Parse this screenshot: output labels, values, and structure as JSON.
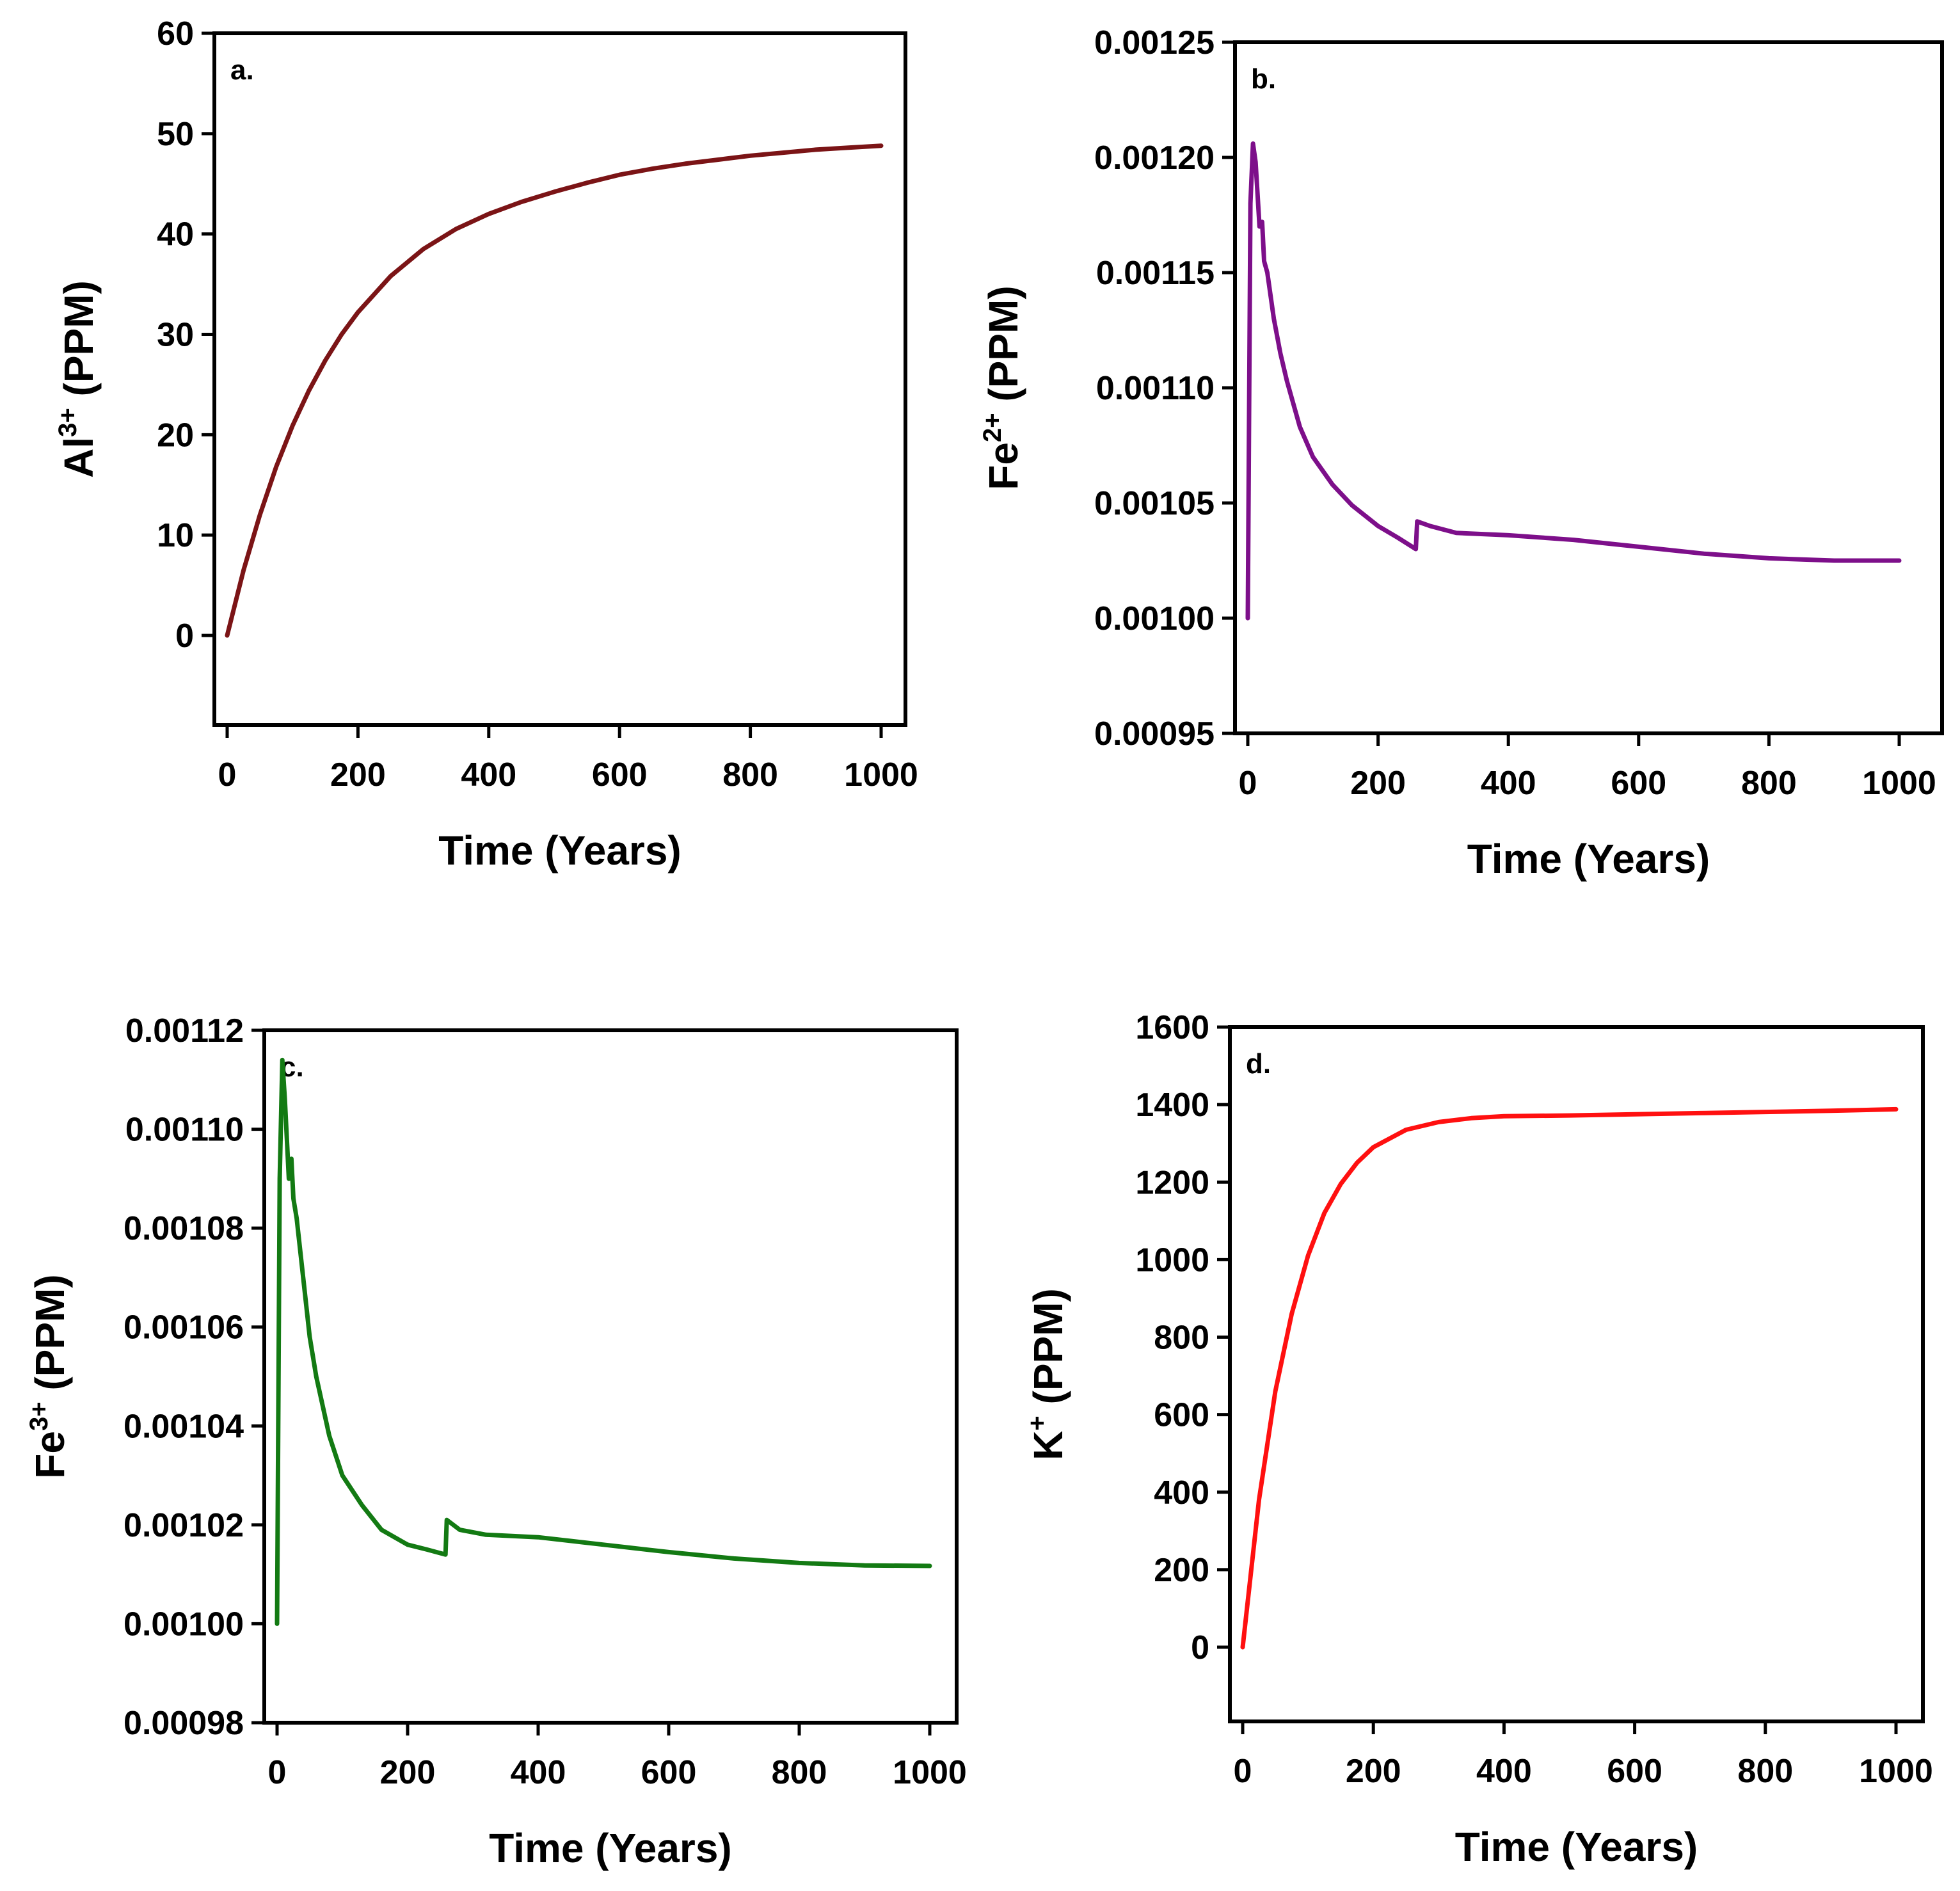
{
  "chart_data": [
    {
      "id": "a",
      "type": "line",
      "panel_label": "a.",
      "xlabel": "Time (Years)",
      "ylabel_main": "Al",
      "ylabel_sup": "3+",
      "ylabel_unit": " (PPM)",
      "xlim": [
        -20,
        1040
      ],
      "ylim": [
        -9,
        60
      ],
      "xticks": [
        0,
        200,
        400,
        600,
        800,
        1000
      ],
      "xtick_labels": [
        "0",
        "200",
        "400",
        "600",
        "800",
        "1000"
      ],
      "yticks": [
        0,
        10,
        20,
        30,
        40,
        50,
        60
      ],
      "ytick_labels": [
        "0",
        "10",
        "20",
        "30",
        "40",
        "50",
        "60"
      ],
      "color": "#7b1416",
      "series": [
        {
          "name": "Al3+",
          "x": [
            0,
            25,
            50,
            75,
            100,
            125,
            150,
            175,
            200,
            250,
            300,
            350,
            400,
            450,
            500,
            550,
            600,
            650,
            700,
            750,
            800,
            850,
            900,
            950,
            1000
          ],
          "y": [
            0,
            6.5,
            12.0,
            16.8,
            20.9,
            24.4,
            27.4,
            30.0,
            32.2,
            35.8,
            38.5,
            40.5,
            42.0,
            43.2,
            44.2,
            45.1,
            45.9,
            46.5,
            47.0,
            47.4,
            47.8,
            48.1,
            48.4,
            48.6,
            48.8
          ]
        }
      ]
    },
    {
      "id": "b",
      "type": "line",
      "panel_label": "b.",
      "xlabel": "Time (Years)",
      "ylabel_main": "Fe",
      "ylabel_sup": "2+",
      "ylabel_unit": " (PPM)",
      "xlim": [
        -20,
        1040
      ],
      "ylim": [
        0.00095,
        0.00125
      ],
      "xticks": [
        0,
        200,
        400,
        600,
        800,
        1000
      ],
      "xtick_labels": [
        "0",
        "200",
        "400",
        "600",
        "800",
        "1000"
      ],
      "yticks": [
        0.00095,
        0.001,
        0.00105,
        0.0011,
        0.00115,
        0.0012,
        0.00125
      ],
      "ytick_labels": [
        "0.00095",
        "0.00100",
        "0.00105",
        "0.00110",
        "0.00115",
        "0.00120",
        "0.00125"
      ],
      "color": "#7d0f8a",
      "series": [
        {
          "name": "Fe2+",
          "x": [
            0,
            4,
            8,
            12,
            18,
            22,
            25,
            30,
            40,
            50,
            60,
            80,
            100,
            130,
            160,
            200,
            230,
            258,
            260,
            280,
            320,
            400,
            500,
            600,
            700,
            800,
            900,
            1000
          ],
          "y": [
            0.001,
            0.00118,
            0.001206,
            0.001198,
            0.00117,
            0.001172,
            0.001155,
            0.00115,
            0.00113,
            0.001115,
            0.001103,
            0.001083,
            0.00107,
            0.001058,
            0.001049,
            0.00104,
            0.001035,
            0.00103,
            0.001042,
            0.00104,
            0.001037,
            0.001036,
            0.001034,
            0.001031,
            0.001028,
            0.001026,
            0.001025,
            0.001025
          ]
        }
      ]
    },
    {
      "id": "c",
      "type": "line",
      "panel_label": "c.",
      "xlabel": "Time (Years)",
      "ylabel_main": "Fe",
      "ylabel_sup": "3+",
      "ylabel_unit": " (PPM)",
      "xlim": [
        -20,
        1040
      ],
      "ylim": [
        0.00098,
        0.00112
      ],
      "xticks": [
        0,
        200,
        400,
        600,
        800,
        1000
      ],
      "xtick_labels": [
        "0",
        "200",
        "400",
        "600",
        "800",
        "1000"
      ],
      "yticks": [
        0.00098,
        0.001,
        0.00102,
        0.00104,
        0.00106,
        0.00108,
        0.0011,
        0.00112
      ],
      "ytick_labels": [
        "0.00098",
        "0.00100",
        "0.00102",
        "0.00104",
        "0.00106",
        "0.00108",
        "0.00110",
        "0.00112"
      ],
      "color": "#137a13",
      "series": [
        {
          "name": "Fe3+",
          "x": [
            0,
            4,
            8,
            12,
            18,
            22,
            25,
            30,
            40,
            50,
            60,
            80,
            100,
            130,
            160,
            200,
            230,
            258,
            260,
            280,
            320,
            400,
            500,
            600,
            700,
            800,
            900,
            1000
          ],
          "y": [
            0.001,
            0.00109,
            0.001114,
            0.001106,
            0.00109,
            0.001094,
            0.001086,
            0.001082,
            0.00107,
            0.001058,
            0.00105,
            0.001038,
            0.00103,
            0.001024,
            0.001019,
            0.001016,
            0.001015,
            0.001014,
            0.001021,
            0.001019,
            0.001018,
            0.0010175,
            0.001016,
            0.0010145,
            0.0010132,
            0.0010123,
            0.0010118,
            0.0010117
          ]
        }
      ]
    },
    {
      "id": "d",
      "type": "line",
      "panel_label": "d.",
      "xlabel": "Time (Years)",
      "ylabel_main": "K",
      "ylabel_sup": "+",
      "ylabel_unit": " (PPM)",
      "xlim": [
        -20,
        1040
      ],
      "ylim": [
        -180,
        1600
      ],
      "xticks": [
        0,
        200,
        400,
        600,
        800,
        1000
      ],
      "xtick_labels": [
        "0",
        "200",
        "400",
        "600",
        "800",
        "1000"
      ],
      "yticks": [
        0,
        200,
        400,
        600,
        800,
        1000,
        1200,
        1400,
        1600
      ],
      "ytick_labels": [
        "0",
        "200",
        "400",
        "600",
        "800",
        "1000",
        "1200",
        "1400",
        "1600"
      ],
      "color": "#ff1010",
      "series": [
        {
          "name": "K+",
          "x": [
            0,
            25,
            50,
            75,
            100,
            125,
            150,
            175,
            200,
            250,
            300,
            350,
            400,
            500,
            600,
            700,
            800,
            900,
            1000
          ],
          "y": [
            0,
            380,
            660,
            860,
            1010,
            1120,
            1195,
            1250,
            1290,
            1335,
            1355,
            1365,
            1370,
            1372,
            1375,
            1378,
            1381,
            1384,
            1388
          ]
        }
      ]
    }
  ]
}
